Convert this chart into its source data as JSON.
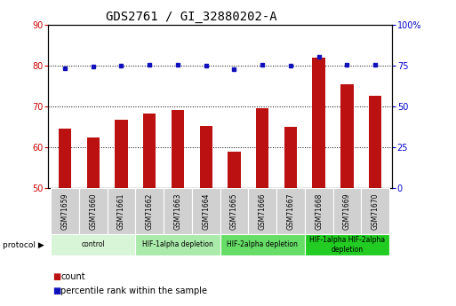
{
  "title": "GDS2761 / GI_32880202-A",
  "samples": [
    "GSM71659",
    "GSM71660",
    "GSM71661",
    "GSM71662",
    "GSM71663",
    "GSM71664",
    "GSM71665",
    "GSM71666",
    "GSM71667",
    "GSM71668",
    "GSM71669",
    "GSM71670"
  ],
  "counts": [
    64.5,
    62.3,
    66.7,
    68.2,
    69.2,
    65.2,
    59.0,
    69.5,
    65.0,
    82.0,
    75.5,
    72.5
  ],
  "percentiles": [
    73.5,
    74.5,
    75.0,
    75.5,
    75.5,
    75.0,
    72.5,
    75.5,
    75.0,
    80.5,
    75.5,
    75.5
  ],
  "ylim_left": [
    50,
    90
  ],
  "ylim_right": [
    0,
    100
  ],
  "yticks_left": [
    50,
    60,
    70,
    80,
    90
  ],
  "yticks_right": [
    0,
    25,
    50,
    75,
    100
  ],
  "bar_color": "#bb1111",
  "dot_color": "#1111bb",
  "plot_bg": "#ffffff",
  "protocols": [
    {
      "label": "control",
      "start": 0,
      "end": 2,
      "color": "#d8f5d8"
    },
    {
      "label": "HIF-1alpha depletion",
      "start": 3,
      "end": 5,
      "color": "#aaeaaa"
    },
    {
      "label": "HIF-2alpha depletion",
      "start": 6,
      "end": 8,
      "color": "#66dd66"
    },
    {
      "label": "HIF-1alpha HIF-2alpha\ndepletion",
      "start": 9,
      "end": 11,
      "color": "#22cc22"
    }
  ],
  "legend_count_label": "count",
  "legend_pct_label": "percentile rank within the sample",
  "protocol_label": "protocol",
  "tick_label_color_left": "#cc0000",
  "tick_label_color_right": "#0000cc",
  "title_fontsize": 10,
  "bar_width": 0.45,
  "sample_box_color": "#d0d0d0"
}
